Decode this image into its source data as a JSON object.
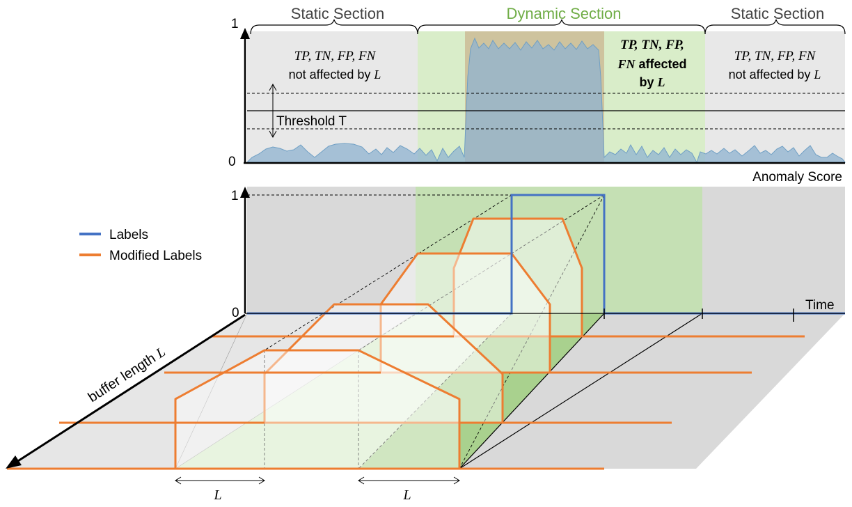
{
  "top_panel": {
    "sections": [
      {
        "header": "Static Section",
        "line1": "TP, TN, FP, FN",
        "line2_prefix": "not affected by ",
        "line2_var": "L"
      },
      {
        "header": "Dynamic Section",
        "line1": "TP, TN, FP,",
        "line2_var": "FN",
        "line2_suffix": " affected",
        "line3_prefix": "by ",
        "line3_var": "L"
      },
      {
        "header": "Static Section",
        "line1": "TP, TN, FP, FN",
        "line2_prefix": "not affected by ",
        "line2_var": "L"
      }
    ],
    "y_top_label": "1",
    "y_bottom_label": "0",
    "threshold_label": "Threshold T",
    "x_axis_label": "Anomaly Score"
  },
  "bottom_panel": {
    "y_top_label": "1",
    "y_zero_label": "0",
    "time_label": "Time",
    "depth_axis_label_prefix": "buffer length ",
    "depth_axis_label_var": "L",
    "dimension_label": "L"
  },
  "legend": {
    "items": [
      {
        "label": "Labels",
        "color": "#4472c4"
      },
      {
        "label": "Modified Labels",
        "color": "#ed7d31"
      }
    ]
  },
  "colors": {
    "labels_line": "#4472c4",
    "modified_labels_line": "#ed7d31",
    "dynamic_header": "#70ad47",
    "static_region": "#e8e8e8",
    "dynamic_region": "#c9e5b3",
    "anomaly_region": "#c9b48f",
    "score_fill": "#8fb3d0"
  },
  "icons": {
    "arrow_up": "arrow-up-icon",
    "double_arrow": "double-arrow-icon"
  }
}
